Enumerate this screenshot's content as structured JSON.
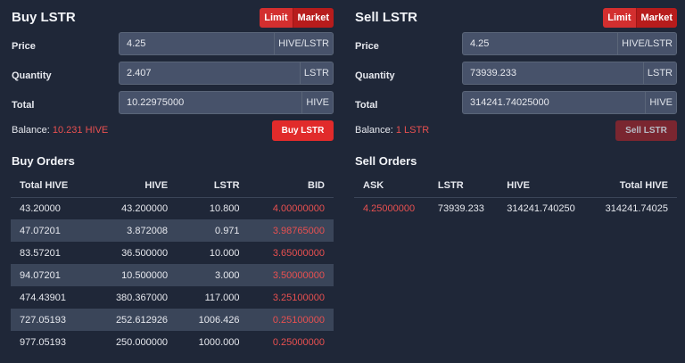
{
  "buy": {
    "title": "Buy LSTR",
    "toggle": {
      "limit": "Limit",
      "market": "Market"
    },
    "price": {
      "label": "Price",
      "value": "4.25",
      "unit": "HIVE/LSTR"
    },
    "quantity": {
      "label": "Quantity",
      "value": "2.407",
      "unit": "LSTR"
    },
    "total": {
      "label": "Total",
      "value": "10.22975000",
      "unit": "HIVE"
    },
    "balance_label": "Balance:",
    "balance_value": "10.231 HIVE",
    "button_label": "Buy LSTR"
  },
  "sell": {
    "title": "Sell LSTR",
    "toggle": {
      "limit": "Limit",
      "market": "Market"
    },
    "price": {
      "label": "Price",
      "value": "4.25",
      "unit": "HIVE/LSTR"
    },
    "quantity": {
      "label": "Quantity",
      "value": "73939.233",
      "unit": "LSTR"
    },
    "total": {
      "label": "Total",
      "value": "314241.74025000",
      "unit": "HIVE"
    },
    "balance_label": "Balance:",
    "balance_value": "1 LSTR",
    "button_label": "Sell LSTR"
  },
  "buy_orders": {
    "title": "Buy Orders",
    "headers": [
      "Total HIVE",
      "HIVE",
      "LSTR",
      "BID"
    ],
    "rows": [
      [
        "43.20000",
        "43.200000",
        "10.800",
        "4.00000000"
      ],
      [
        "47.07201",
        "3.872008",
        "0.971",
        "3.98765000"
      ],
      [
        "83.57201",
        "36.500000",
        "10.000",
        "3.65000000"
      ],
      [
        "94.07201",
        "10.500000",
        "3.000",
        "3.50000000"
      ],
      [
        "474.43901",
        "380.367000",
        "117.000",
        "3.25100000"
      ],
      [
        "727.05193",
        "252.612926",
        "1006.426",
        "0.25100000"
      ],
      [
        "977.05193",
        "250.000000",
        "1000.000",
        "0.25000000"
      ]
    ]
  },
  "sell_orders": {
    "title": "Sell Orders",
    "headers": [
      "ASK",
      "LSTR",
      "HIVE",
      "Total HIVE"
    ],
    "rows": [
      [
        "4.25000000",
        "73939.233",
        "314241.740250",
        "314241.74025"
      ]
    ]
  },
  "colors": {
    "background": "#1f2738",
    "accent_red": "#e12b2b",
    "price_red": "#e85050",
    "input_bg": "#47526a",
    "stripe": "#3a4559"
  }
}
